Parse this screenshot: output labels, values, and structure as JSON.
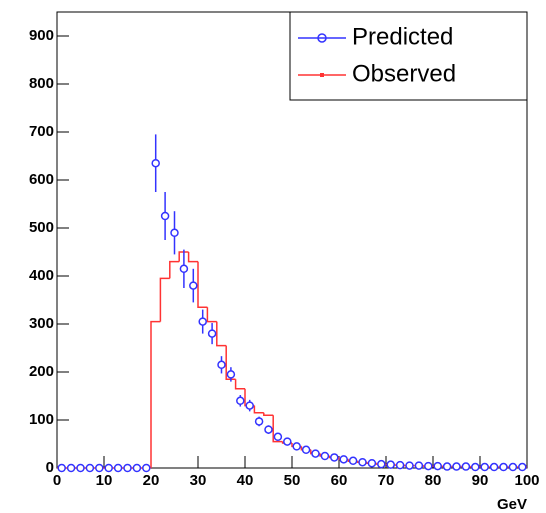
{
  "chart_data": {
    "type": "histogram-comparison",
    "x_label": "GeV",
    "xlim": [
      0,
      100
    ],
    "ylim": [
      0,
      950
    ],
    "xticks": [
      0,
      10,
      20,
      30,
      40,
      50,
      60,
      70,
      80,
      90,
      100
    ],
    "yticks": [
      0,
      100,
      200,
      300,
      400,
      500,
      600,
      700,
      800,
      900
    ],
    "legend": "top-right",
    "predicted": {
      "name": "Predicted",
      "color": "#3333ff",
      "x": [
        1,
        3,
        5,
        7,
        9,
        11,
        13,
        15,
        17,
        19,
        21,
        23,
        25,
        27,
        29,
        31,
        33,
        35,
        37,
        39,
        41,
        43,
        45,
        47,
        49,
        51,
        53,
        55,
        57,
        59,
        61,
        63,
        65,
        67,
        69,
        71,
        73,
        75,
        77,
        79,
        81,
        83,
        85,
        87,
        89,
        91,
        93,
        95,
        97,
        99
      ],
      "values": [
        0,
        0,
        0,
        0,
        0,
        0,
        0,
        0,
        0,
        0,
        635,
        525,
        490,
        415,
        380,
        305,
        280,
        215,
        195,
        140,
        130,
        97,
        80,
        65,
        55,
        45,
        38,
        30,
        25,
        22,
        18,
        15,
        12,
        10,
        8,
        7,
        6,
        5,
        5,
        4,
        4,
        3,
        3,
        3,
        2,
        2,
        2,
        2,
        2,
        2
      ],
      "errors": [
        0,
        0,
        0,
        0,
        0,
        0,
        0,
        0,
        0,
        0,
        60,
        50,
        45,
        40,
        35,
        25,
        22,
        18,
        15,
        12,
        12,
        10,
        9,
        8,
        7,
        6,
        6,
        5,
        5,
        4,
        4,
        3,
        3,
        3,
        3,
        2,
        2,
        2,
        2,
        2,
        2,
        2,
        2,
        2,
        1,
        1,
        1,
        1,
        1,
        1
      ]
    },
    "observed": {
      "name": "Observed",
      "color": "#ff3333",
      "bins": [
        0,
        2,
        4,
        6,
        8,
        10,
        12,
        14,
        16,
        18,
        20,
        22,
        24,
        26,
        28,
        30,
        32,
        34,
        36,
        38,
        40,
        42,
        44,
        46,
        48,
        50,
        52,
        54,
        56,
        58,
        60,
        62,
        64,
        66,
        68,
        70,
        72,
        74,
        76,
        78,
        80,
        82,
        84,
        86,
        88,
        90,
        92,
        94,
        96,
        98,
        100
      ],
      "values": [
        0,
        0,
        0,
        0,
        0,
        0,
        0,
        0,
        0,
        0,
        305,
        395,
        430,
        450,
        430,
        335,
        305,
        255,
        185,
        165,
        130,
        115,
        110,
        55,
        52,
        45,
        38,
        30,
        25,
        22,
        18,
        14,
        12,
        10,
        8,
        7,
        6,
        5,
        5,
        4,
        4,
        3,
        3,
        3,
        2,
        2,
        2,
        2,
        2,
        2
      ]
    }
  }
}
